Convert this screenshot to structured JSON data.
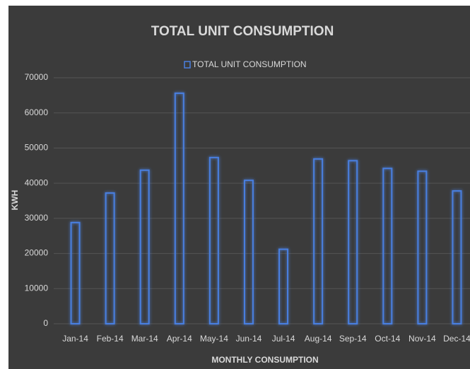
{
  "chart_data": {
    "type": "bar",
    "title": "TOTAL UNIT CONSUMPTION",
    "x_label": "MONTHLY CONSUMPTION",
    "y_label": "KWH",
    "categories": [
      "Jan-14",
      "Feb-14",
      "Mar-14",
      "Apr-14",
      "May-14",
      "Jun-14",
      "Jul-14",
      "Aug-14",
      "Sep-14",
      "Oct-14",
      "Nov-14",
      "Dec-14"
    ],
    "series": [
      {
        "name": "TOTAL UNIT CONSUMPTION",
        "color": "#4a7fe0",
        "values": [
          28800,
          37200,
          43700,
          65600,
          47300,
          40800,
          21200,
          46900,
          46400,
          44200,
          43400,
          37800
        ]
      }
    ],
    "ylim": [
      0,
      70000
    ],
    "yticks": [
      0,
      10000,
      20000,
      30000,
      40000,
      50000,
      60000,
      70000
    ],
    "grid": true,
    "legend": "top"
  }
}
